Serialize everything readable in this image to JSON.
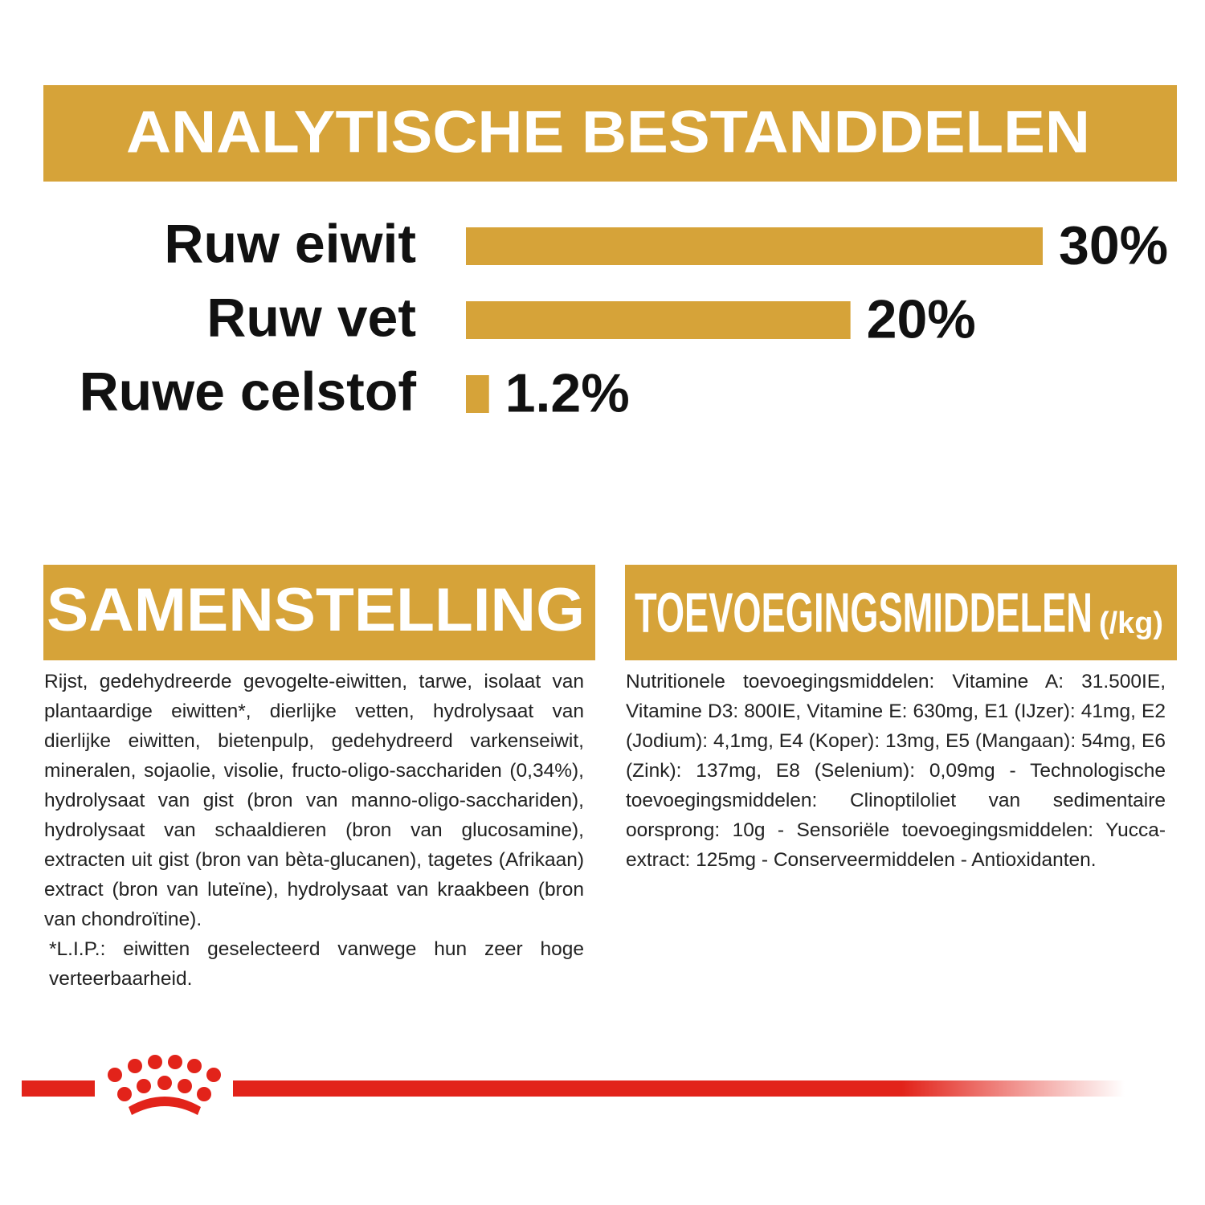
{
  "chart_data": {
    "type": "bar",
    "title": "ANALYTISCHE BESTANDDELEN",
    "categories": [
      "Ruw eiwit",
      "Ruw vet",
      "Ruwe celstof"
    ],
    "values": [
      30,
      20,
      1.2
    ],
    "value_labels": [
      "30%",
      "20%",
      "1.2%"
    ],
    "color": "#d6a339"
  },
  "composition": {
    "title": "SAMENSTELLING",
    "paragraphs": [
      "Rijst, gedehydreerde gevogelte-eiwitten, tarwe, isolaat van plantaardige eiwitten*, dierlijke vetten, hydrolysaat van dierlijke eiwitten, bietenpulp, gedehydreerd varkenseiwit, mineralen, sojaolie, visolie, fructo-oligo-sacchariden (0,34%), hydrolysaat van gist (bron van manno-oligo-sacchariden), hydrolysaat van schaaldieren (bron van glucosamine), extracten uit gist (bron van bèta-glucanen), tagetes (Afrikaan) extract (bron van luteïne), hydrolysaat van kraakbeen (bron van chondroïtine).",
      "*L.I.P.: eiwitten geselecteerd vanwege hun zeer hoge verteerbaarheid."
    ]
  },
  "additives": {
    "title": "TOEVOEGINGSMIDDELEN",
    "unit": "(/kg)",
    "text": "Nutritionele toevoegingsmiddelen: Vitamine A: 31.500IE, Vitamine D3: 800IE, Vitamine E: 630mg, E1 (IJzer): 41mg, E2 (Jodium): 4,1mg, E4 (Koper): 13mg, E5 (Mangaan): 54mg, E6 (Zink): 137mg, E8 (Selenium): 0,09mg - Technologische toevoegingsmiddelen: Clinoptiloliet van sedimentaire oorsprong: 10g - Sensoriële toevoegingsmiddelen: Yucca-extract: 125mg - Conserveermiddelen - Antioxidanten."
  }
}
